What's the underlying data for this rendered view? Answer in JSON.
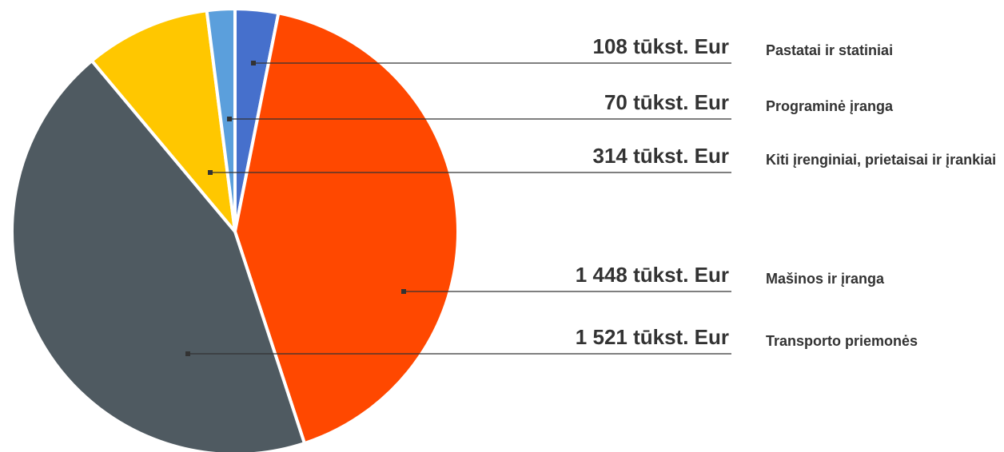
{
  "chart_data": {
    "type": "pie",
    "categories": [
      "Pastatai ir statiniai",
      "Mašinos ir įranga",
      "Transporto priemonės",
      "Kiti įrenginiai, prietaisai ir įrankiai",
      "Programinė įranga"
    ],
    "values": [
      108,
      1448,
      1521,
      314,
      70
    ],
    "value_labels": [
      "108 tūkst. Eur",
      "1 448 tūkst. Eur",
      "1 521 tūkst. Eur",
      "314 tūkst. Eur",
      "70 tūkst. Eur"
    ],
    "colors": [
      "#4670cc",
      "#ff4800",
      "#4f5a61",
      "#ffc700",
      "#5b9fdc"
    ]
  }
}
